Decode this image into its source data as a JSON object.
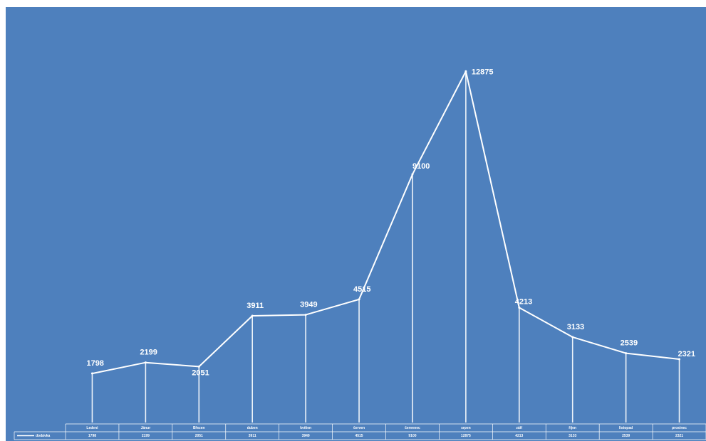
{
  "chart_data": {
    "type": "line",
    "categories": [
      "Ledeni",
      "Jánur",
      "Březen",
      "duben",
      "květen",
      "červen",
      "červenec",
      "srpen",
      "září",
      "říjen",
      "listopad",
      "prosinec"
    ],
    "series": [
      {
        "name": "dodávka",
        "values": [
          1798,
          2199,
          2051,
          3911,
          3949,
          4515,
          9100,
          12875,
          4213,
          3133,
          2539,
          2321
        ]
      }
    ],
    "data_labels": [
      "1798",
      "2199",
      "2051",
      "3911",
      "3949",
      "4515",
      "9100",
      "12875",
      "4213",
      "3133",
      "2539",
      "2321"
    ],
    "ylim": [
      0,
      14500
    ],
    "grid": false,
    "drop_lines": true,
    "data_table": true,
    "legend": "data-table-left",
    "colors": {
      "background": "#4e80bd",
      "line": "#ffffff",
      "table_border": "#ffffff"
    }
  }
}
